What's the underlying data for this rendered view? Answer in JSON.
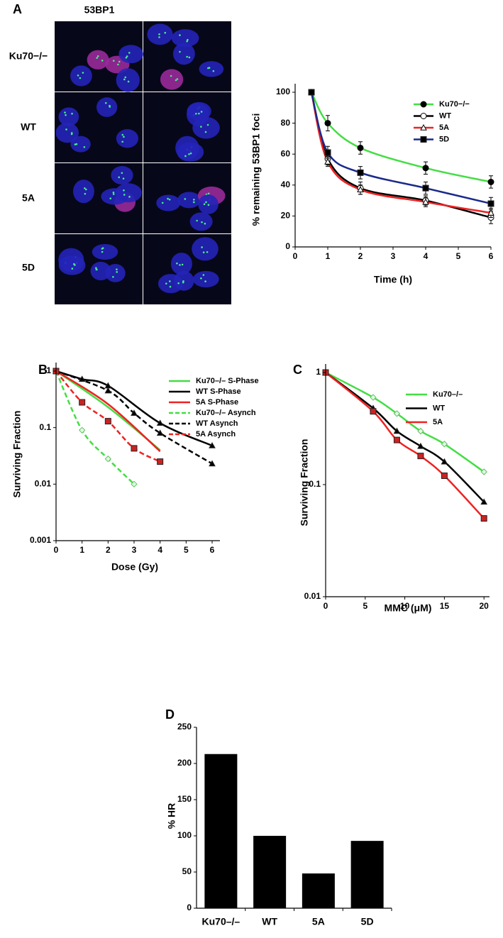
{
  "figure": {
    "panel_labels": [
      "A",
      "B",
      "C",
      "D"
    ],
    "image_title": "53BP1",
    "image_rows": [
      "Ku70−/−",
      "WT",
      "5A",
      "5D"
    ]
  },
  "chart_data": [
    {
      "type": "line",
      "ylabel": "% remaining 53BP1 foci",
      "xlabel": "Time (h)",
      "xlim": [
        0,
        6
      ],
      "xticks": [
        0,
        1,
        2,
        3,
        4,
        5,
        6
      ],
      "ylim": [
        0,
        100
      ],
      "yticks": [
        0,
        20,
        40,
        60,
        80,
        100
      ],
      "log_y": false,
      "legend_markers": true,
      "series": [
        {
          "name": "Ku70−/−",
          "color": "#44dd44",
          "marker": "circle-filled",
          "marker_color": "#000000",
          "linestyle": "solid",
          "x": [
            0.5,
            1,
            2,
            4,
            6
          ],
          "values": [
            100,
            80,
            64,
            51,
            42
          ],
          "errors": [
            0,
            5,
            4,
            4,
            4
          ]
        },
        {
          "name": "WT",
          "color": "#000000",
          "marker": "circle-open",
          "marker_color": "#000000",
          "linestyle": "solid",
          "x": [
            0.5,
            1,
            2,
            4,
            6
          ],
          "values": [
            100,
            57,
            38,
            30,
            19
          ],
          "errors": [
            0,
            4,
            4,
            3,
            4
          ]
        },
        {
          "name": "5A",
          "color": "#ee2222",
          "marker": "triangle-open",
          "marker_color": "#000000",
          "linestyle": "solid",
          "x": [
            0.5,
            1,
            2,
            4,
            6
          ],
          "values": [
            100,
            55,
            37,
            29,
            22
          ],
          "errors": [
            0,
            3,
            3,
            3,
            3
          ]
        },
        {
          "name": "5D",
          "color": "#1a2a8a",
          "marker": "square-filled",
          "marker_color": "#000000",
          "linestyle": "solid",
          "x": [
            0.5,
            1,
            2,
            4,
            6
          ],
          "values": [
            100,
            61,
            48,
            38,
            28
          ],
          "errors": [
            0,
            4,
            4,
            4,
            4
          ]
        }
      ]
    },
    {
      "type": "line",
      "ylabel": "Surviving Fraction",
      "xlabel": "Dose (Gy)",
      "xlim": [
        0,
        6.3
      ],
      "xticks": [
        0,
        1,
        2,
        3,
        4,
        5,
        6
      ],
      "ylim": [
        0.001,
        1
      ],
      "yticks": [
        0.001,
        0.01,
        0.1,
        1
      ],
      "log_y": true,
      "legend_markers": false,
      "series": [
        {
          "name": "Ku70–/– S-Phase",
          "color": "#44dd44",
          "marker": "none",
          "marker_color": "#44dd44",
          "linestyle": "solid",
          "x": [
            0,
            2,
            4
          ],
          "values": [
            1,
            0.23,
            0.04
          ]
        },
        {
          "name": "WT S-Phase",
          "color": "#000000",
          "marker": "triangle-filled",
          "marker_color": "#000000",
          "linestyle": "solid",
          "x": [
            0,
            1,
            2,
            4,
            6
          ],
          "values": [
            1,
            0.72,
            0.55,
            0.12,
            0.048
          ]
        },
        {
          "name": "5A S-Phase",
          "color": "#ee2222",
          "marker": "none",
          "marker_color": "#ee2222",
          "linestyle": "solid",
          "x": [
            0,
            2,
            4
          ],
          "values": [
            1,
            0.26,
            0.038
          ]
        },
        {
          "name": "Ku70–/– Asynch",
          "color": "#44dd44",
          "marker": "diamond-open",
          "marker_color": "#66bb66",
          "linestyle": "dashed",
          "x": [
            0,
            1,
            2,
            3
          ],
          "values": [
            1,
            0.09,
            0.028,
            0.01
          ]
        },
        {
          "name": "WT Asynch",
          "color": "#000000",
          "marker": "triangle-filled",
          "marker_color": "#000000",
          "linestyle": "dashed",
          "x": [
            0,
            2,
            3,
            4,
            6
          ],
          "values": [
            1,
            0.45,
            0.18,
            0.08,
            0.023
          ]
        },
        {
          "name": "5A Asynch",
          "color": "#ee2222",
          "marker": "square-filled",
          "marker_color": "#cc2222",
          "linestyle": "dashed",
          "x": [
            0,
            1,
            2,
            3,
            4
          ],
          "values": [
            1,
            0.28,
            0.13,
            0.043,
            0.025
          ]
        }
      ]
    },
    {
      "type": "line",
      "ylabel": "Surviving Fraction",
      "xlabel": "MMC (μM)",
      "xlim": [
        0,
        20.7
      ],
      "xticks": [
        0,
        5,
        10,
        15,
        20
      ],
      "ylim": [
        0.01,
        1
      ],
      "yticks": [
        0.01,
        0.1,
        1
      ],
      "log_y": true,
      "legend_markers": false,
      "series": [
        {
          "name": "Ku70–/–",
          "color": "#44dd44",
          "marker": "diamond-open",
          "marker_color": "#66bb66",
          "linestyle": "solid",
          "x": [
            0,
            6,
            9,
            12,
            15,
            20
          ],
          "values": [
            1,
            0.6,
            0.43,
            0.3,
            0.23,
            0.13
          ]
        },
        {
          "name": "WT",
          "color": "#000000",
          "marker": "triangle-filled",
          "marker_color": "#000000",
          "linestyle": "solid",
          "x": [
            0,
            6,
            9,
            12,
            15,
            20
          ],
          "values": [
            1,
            0.48,
            0.3,
            0.22,
            0.16,
            0.07
          ]
        },
        {
          "name": "5A",
          "color": "#ee2222",
          "marker": "square-filled",
          "marker_color": "#cc2222",
          "linestyle": "solid",
          "x": [
            0,
            6,
            9,
            12,
            15,
            20
          ],
          "values": [
            1,
            0.45,
            0.25,
            0.18,
            0.12,
            0.05
          ]
        }
      ]
    },
    {
      "type": "bar",
      "ylabel": "% HR",
      "categories": [
        "Ku70–/–",
        "WT",
        "5A",
        "5D"
      ],
      "values": [
        213,
        100,
        48,
        93
      ],
      "color": "#000000",
      "ylim": [
        0,
        250
      ],
      "yticks": [
        0,
        50,
        100,
        150,
        200,
        250
      ]
    }
  ]
}
